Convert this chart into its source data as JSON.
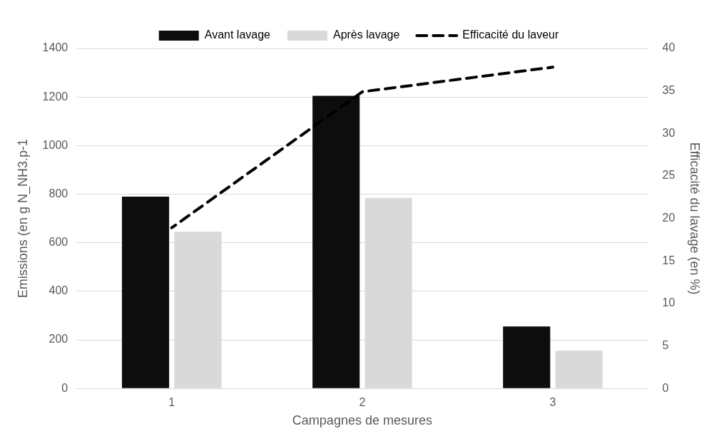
{
  "chart_data": {
    "type": "bar",
    "categories": [
      "1",
      "2",
      "3"
    ],
    "xlabel": "Campagnes de mesures",
    "ylabel": "Emissions (en g N_NH3.p-1",
    "y2label": "Efficacité du lavage (en %)",
    "series": [
      {
        "name": "Avant lavage",
        "color": "#0d0d0d",
        "values": [
          790,
          1205,
          255
        ]
      },
      {
        "name": "Après lavage",
        "color": "#d9d9d9",
        "values": [
          645,
          785,
          155
        ]
      },
      {
        "name": "Efficacité du laveur",
        "type": "line",
        "axis": "y2",
        "color": "#000000",
        "line_style": "dashed",
        "values": [
          18.9,
          34.9,
          37.8
        ]
      }
    ],
    "ylim": [
      0,
      1400
    ],
    "yticks": [
      0,
      200,
      400,
      600,
      800,
      1000,
      1200,
      1400
    ],
    "y2lim": [
      0,
      40
    ],
    "y2ticks": [
      0,
      5,
      10,
      15,
      20,
      25,
      30,
      35,
      40
    ],
    "grid": "y",
    "legend": "top",
    "marker": "none"
  }
}
